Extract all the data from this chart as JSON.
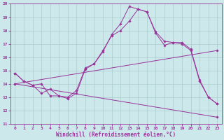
{
  "xlabel": "Windchill (Refroidissement éolien,°C)",
  "bg_color": "#cce8eb",
  "grid_color": "#aacccc",
  "line_color": "#993399",
  "xlim": [
    -0.5,
    23.5
  ],
  "ylim": [
    11,
    20
  ],
  "xticks": [
    0,
    1,
    2,
    3,
    4,
    5,
    6,
    7,
    8,
    9,
    10,
    11,
    12,
    13,
    14,
    15,
    16,
    17,
    18,
    19,
    20,
    21,
    22,
    23
  ],
  "yticks": [
    11,
    12,
    13,
    14,
    15,
    16,
    17,
    18,
    19,
    20
  ],
  "line1_x": [
    0,
    1,
    2,
    3,
    4,
    5,
    6,
    7,
    8,
    9,
    10,
    11,
    12,
    13,
    14,
    15,
    16,
    17,
    18,
    19,
    20,
    21,
    22,
    23
  ],
  "line1_y": [
    14.8,
    14.2,
    13.9,
    13.3,
    13.6,
    13.1,
    12.9,
    13.3,
    15.1,
    15.5,
    16.5,
    17.6,
    18.0,
    18.7,
    19.6,
    19.4,
    17.8,
    16.9,
    17.1,
    17.0,
    16.5,
    14.2,
    13.0,
    12.5
  ],
  "line2_x": [
    0,
    1,
    2,
    3,
    4,
    5,
    6,
    7,
    8,
    9,
    10,
    11,
    12,
    13,
    14,
    15,
    16,
    17,
    18,
    19,
    20,
    21,
    22,
    23
  ],
  "line2_y": [
    14.8,
    14.2,
    13.9,
    14.0,
    13.1,
    13.1,
    13.0,
    13.5,
    15.2,
    15.5,
    16.4,
    17.7,
    18.5,
    19.8,
    19.6,
    19.4,
    17.9,
    17.2,
    17.1,
    17.1,
    16.6,
    14.3,
    13.0,
    12.5
  ],
  "line3_x": [
    0,
    23
  ],
  "line3_y": [
    14.0,
    16.5
  ],
  "line4_x": [
    0,
    23
  ],
  "line4_y": [
    14.0,
    11.5
  ]
}
